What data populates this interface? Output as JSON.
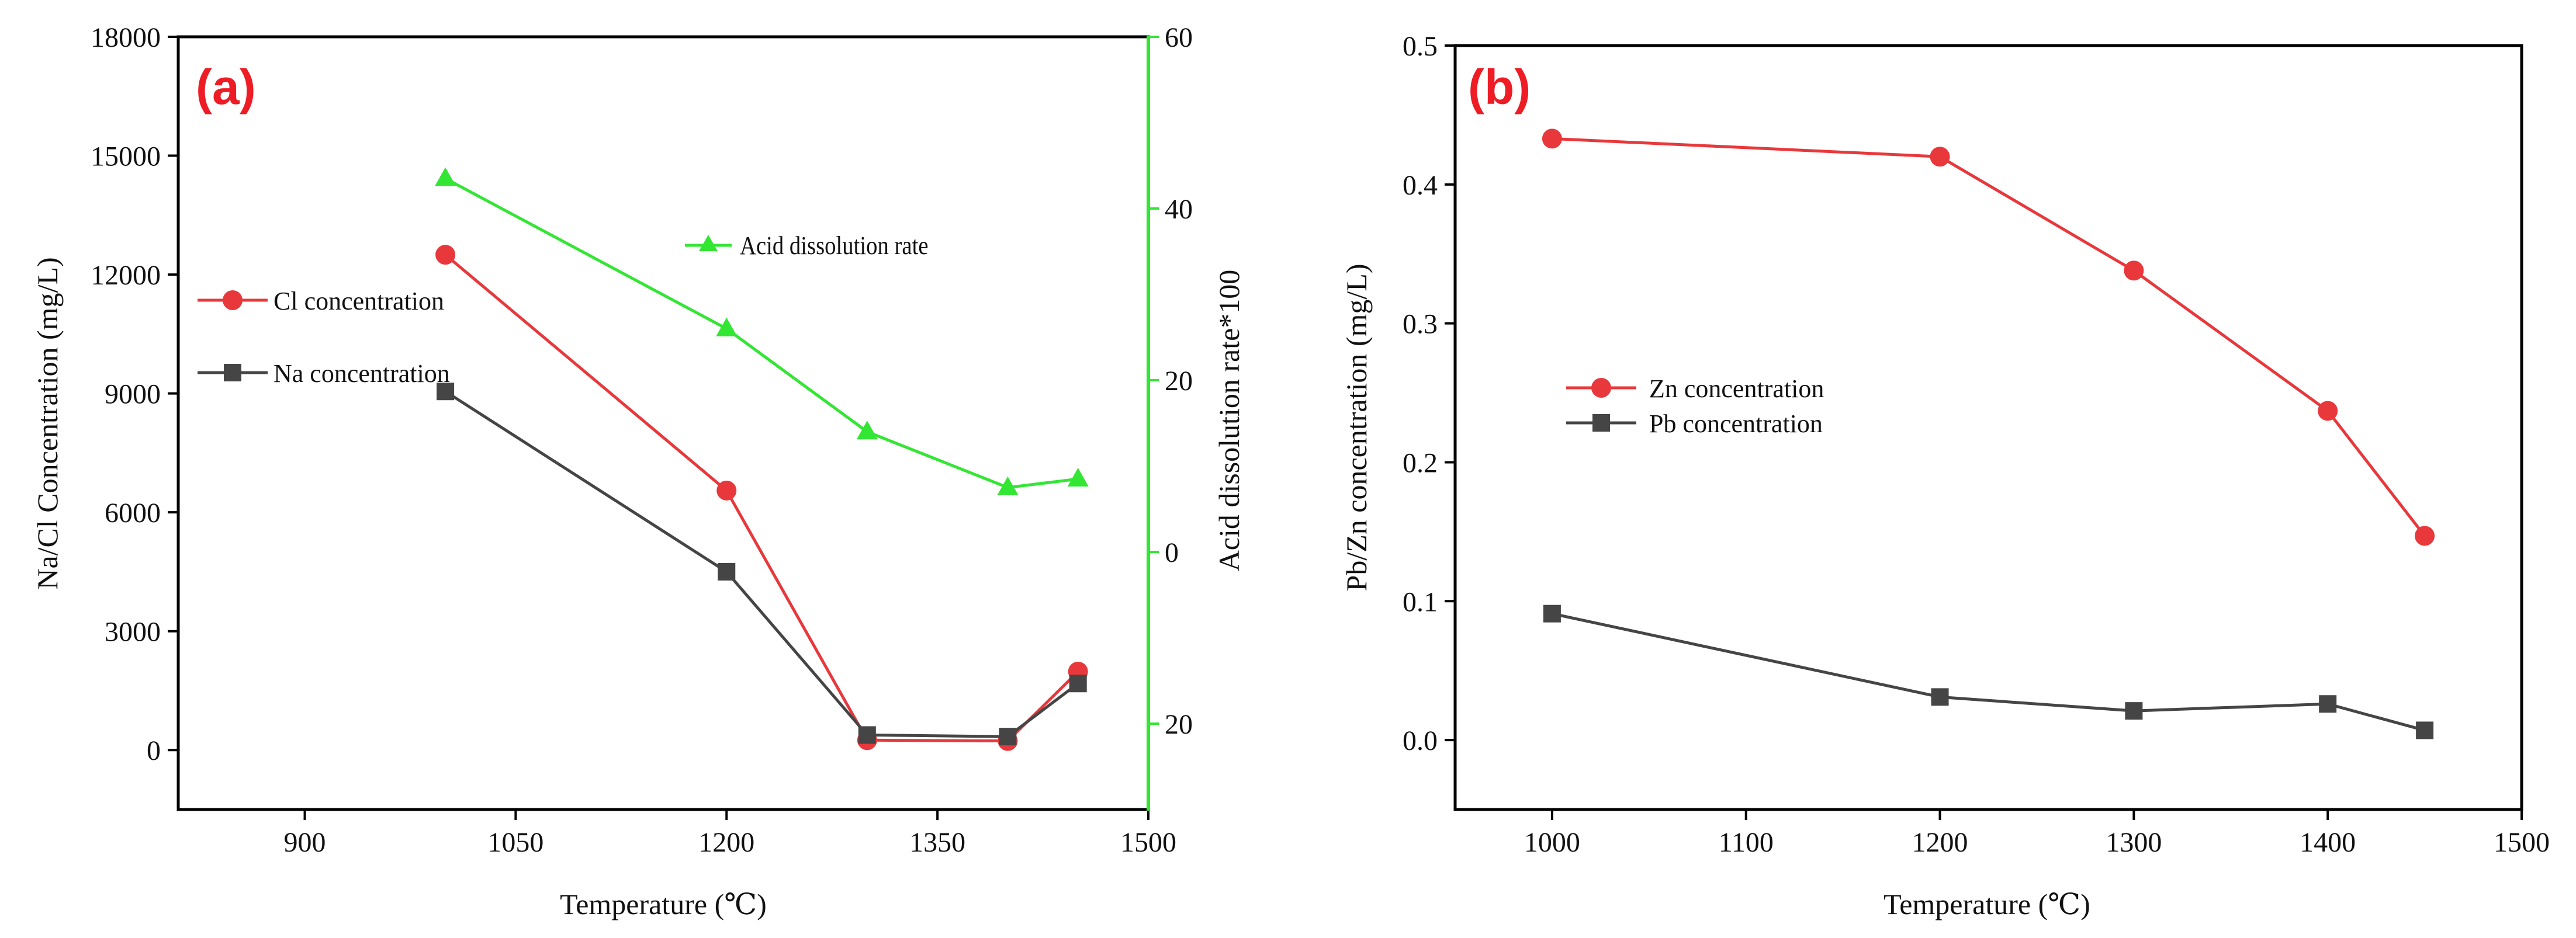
{
  "chart_data": [
    {
      "panel_label": "(a)",
      "type": "line",
      "xlabel": "Temperature (℃)",
      "ylabel": "Na/Cl Concentration (mg/L)",
      "y2label": "Acid dissolution rate*100",
      "xlim": [
        810,
        1500
      ],
      "xticks": [
        900,
        1050,
        1200,
        1350,
        1500
      ],
      "ylim": [
        -1500,
        18000
      ],
      "yticks": [
        0,
        3000,
        6000,
        9000,
        12000,
        15000,
        18000
      ],
      "y2lim": [
        -30,
        60
      ],
      "y2ticks": [
        {
          "value": -20,
          "label": "20"
        },
        {
          "value": 0,
          "label": "0"
        },
        {
          "value": 20,
          "label": "20"
        },
        {
          "value": 40,
          "label": "40"
        },
        {
          "value": 60,
          "label": "60"
        }
      ],
      "series": [
        {
          "name": "Cl concentration",
          "axis": "left",
          "color": "#e8383b",
          "marker": "circle",
          "x": [
            1000,
            1200,
            1300,
            1400,
            1450
          ],
          "values": [
            12500,
            6550,
            250,
            230,
            1980
          ]
        },
        {
          "name": "Na concentration",
          "axis": "left",
          "color": "#454545",
          "marker": "square",
          "x": [
            1000,
            1200,
            1300,
            1400,
            1450
          ],
          "values": [
            9050,
            4500,
            380,
            340,
            1680
          ]
        },
        {
          "name": "Acid dissolution rate",
          "axis": "right",
          "color": "#33e633",
          "marker": "triangle",
          "x": [
            1000,
            1200,
            1300,
            1400,
            1450
          ],
          "values": [
            43.5,
            26,
            14,
            7.5,
            8.5
          ]
        }
      ]
    },
    {
      "panel_label": "(b)",
      "type": "line",
      "xlabel": "Temperature (℃)",
      "ylabel": "Pb/Zn concentration (mg/L)",
      "xlim": [
        950,
        1500
      ],
      "xticks": [
        1000,
        1100,
        1200,
        1300,
        1400,
        1500
      ],
      "ylim": [
        -0.05,
        0.5
      ],
      "yticks": [
        0.0,
        0.1,
        0.2,
        0.3,
        0.4,
        0.5
      ],
      "series": [
        {
          "name": "Zn concentration",
          "color": "#e8383b",
          "marker": "circle",
          "x": [
            1000,
            1200,
            1300,
            1400,
            1450
          ],
          "values": [
            0.433,
            0.42,
            0.338,
            0.237,
            0.147
          ]
        },
        {
          "name": "Pb concentration",
          "color": "#454545",
          "marker": "square",
          "x": [
            1000,
            1200,
            1300,
            1400,
            1450
          ],
          "values": [
            0.091,
            0.031,
            0.021,
            0.026,
            0.007
          ]
        }
      ]
    }
  ]
}
